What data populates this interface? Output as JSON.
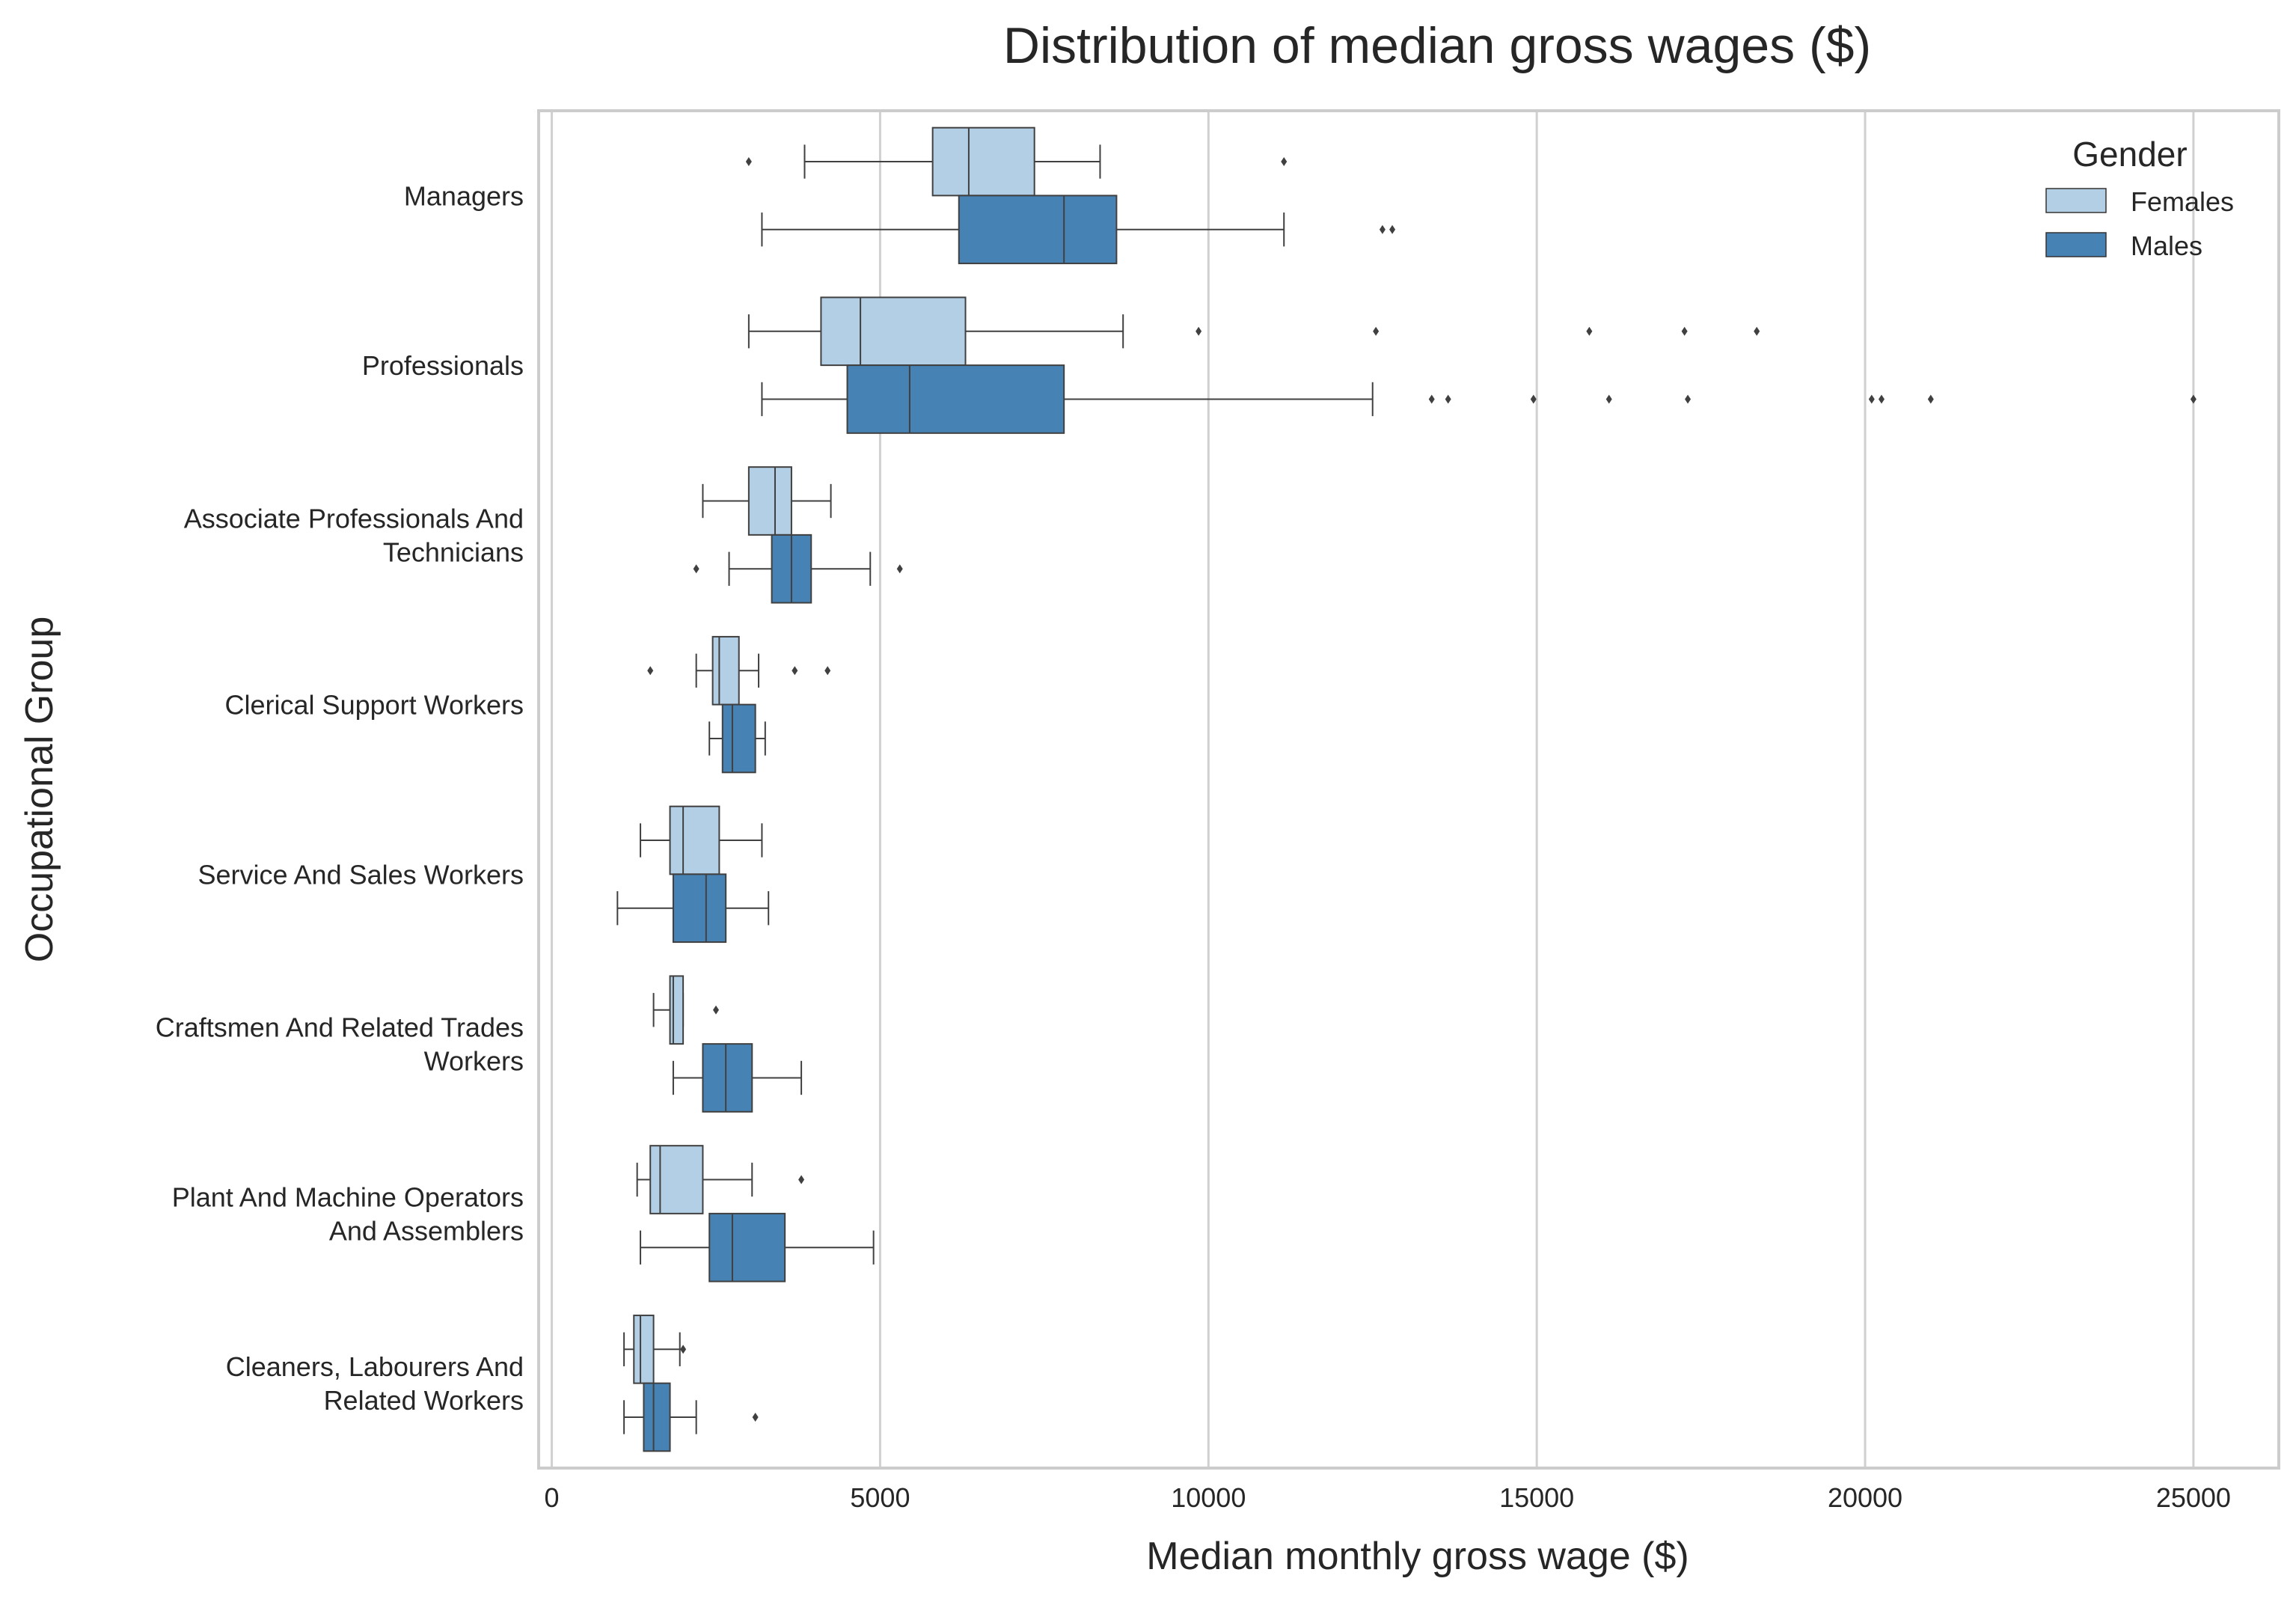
{
  "chart_data": {
    "type": "boxplot-horizontal",
    "title": "Distribution of median gross wages ($)",
    "xlabel": "Median monthly gross wage ($)",
    "ylabel": "Occupational Group",
    "xlim": [
      -200,
      26300
    ],
    "xticks": [
      0,
      5000,
      10000,
      15000,
      20000,
      25000
    ],
    "xtick_labels": [
      "0",
      "5000",
      "10000",
      "15000",
      "20000",
      "25000"
    ],
    "grid": "vertical",
    "legend": {
      "title": "Gender",
      "position": "top-right",
      "entries": [
        {
          "label": "Females",
          "color": "#b3cfe5"
        },
        {
          "label": "Males",
          "color": "#4682b4"
        }
      ]
    },
    "categories": [
      {
        "label": [
          "Managers"
        ]
      },
      {
        "label": [
          "Professionals"
        ]
      },
      {
        "label": [
          "Associate Professionals And",
          "Technicians"
        ]
      },
      {
        "label": [
          "Clerical Support Workers"
        ]
      },
      {
        "label": [
          "Service And Sales Workers"
        ]
      },
      {
        "label": [
          "Craftsmen And Related Trades",
          "Workers"
        ]
      },
      {
        "label": [
          "Plant And Machine Operators",
          "And Assemblers"
        ]
      },
      {
        "label": [
          "Cleaners, Labourers And",
          "Related Workers"
        ]
      }
    ],
    "series": [
      {
        "name": "Females",
        "color": "#b3cfe5",
        "boxes": [
          {
            "whislo": 3850,
            "q1": 5800,
            "med": 6350,
            "q3": 7350,
            "whishi": 8350,
            "fliers": [
              3000,
              11150
            ]
          },
          {
            "whislo": 3000,
            "q1": 4100,
            "med": 4700,
            "q3": 6300,
            "whishi": 8700,
            "fliers": [
              9850,
              12550,
              15800,
              17250,
              18350
            ]
          },
          {
            "whislo": 2300,
            "q1": 3000,
            "med": 3400,
            "q3": 3650,
            "whishi": 4250,
            "fliers": []
          },
          {
            "whislo": 2200,
            "q1": 2450,
            "med": 2550,
            "q3": 2850,
            "whishi": 3150,
            "fliers": [
              1500,
              3700,
              4200
            ]
          },
          {
            "whislo": 1350,
            "q1": 1800,
            "med": 2000,
            "q3": 2550,
            "whishi": 3200,
            "fliers": []
          },
          {
            "whislo": 1550,
            "q1": 1800,
            "med": 1850,
            "q3": 2000,
            "whishi": 2000,
            "fliers": [
              2500
            ]
          },
          {
            "whislo": 1300,
            "q1": 1500,
            "med": 1650,
            "q3": 2300,
            "whishi": 3050,
            "fliers": [
              3800
            ]
          },
          {
            "whislo": 1100,
            "q1": 1250,
            "med": 1350,
            "q3": 1550,
            "whishi": 1950,
            "fliers": [
              2000
            ]
          }
        ]
      },
      {
        "name": "Males",
        "color": "#4682b4",
        "boxes": [
          {
            "whislo": 3200,
            "q1": 6200,
            "med": 7800,
            "q3": 8600,
            "whishi": 11150,
            "fliers": [
              12650,
              12800
            ]
          },
          {
            "whislo": 3200,
            "q1": 4500,
            "med": 5450,
            "q3": 7800,
            "whishi": 12500,
            "fliers": [
              13400,
              13650,
              14950,
              16100,
              17300,
              20100,
              20250,
              21000,
              25000
            ]
          },
          {
            "whislo": 2700,
            "q1": 3350,
            "med": 3650,
            "q3": 3950,
            "whishi": 4850,
            "fliers": [
              2200,
              5300
            ]
          },
          {
            "whislo": 2400,
            "q1": 2600,
            "med": 2750,
            "q3": 3100,
            "whishi": 3250,
            "fliers": []
          },
          {
            "whislo": 1000,
            "q1": 1850,
            "med": 2350,
            "q3": 2650,
            "whishi": 3300,
            "fliers": []
          },
          {
            "whislo": 1850,
            "q1": 2300,
            "med": 2650,
            "q3": 3050,
            "whishi": 3800,
            "fliers": []
          },
          {
            "whislo": 1350,
            "q1": 2400,
            "med": 2750,
            "q3": 3550,
            "whishi": 4900,
            "fliers": []
          },
          {
            "whislo": 1100,
            "q1": 1400,
            "med": 1550,
            "q3": 1800,
            "whishi": 2200,
            "fliers": [
              3100
            ]
          }
        ]
      }
    ]
  }
}
